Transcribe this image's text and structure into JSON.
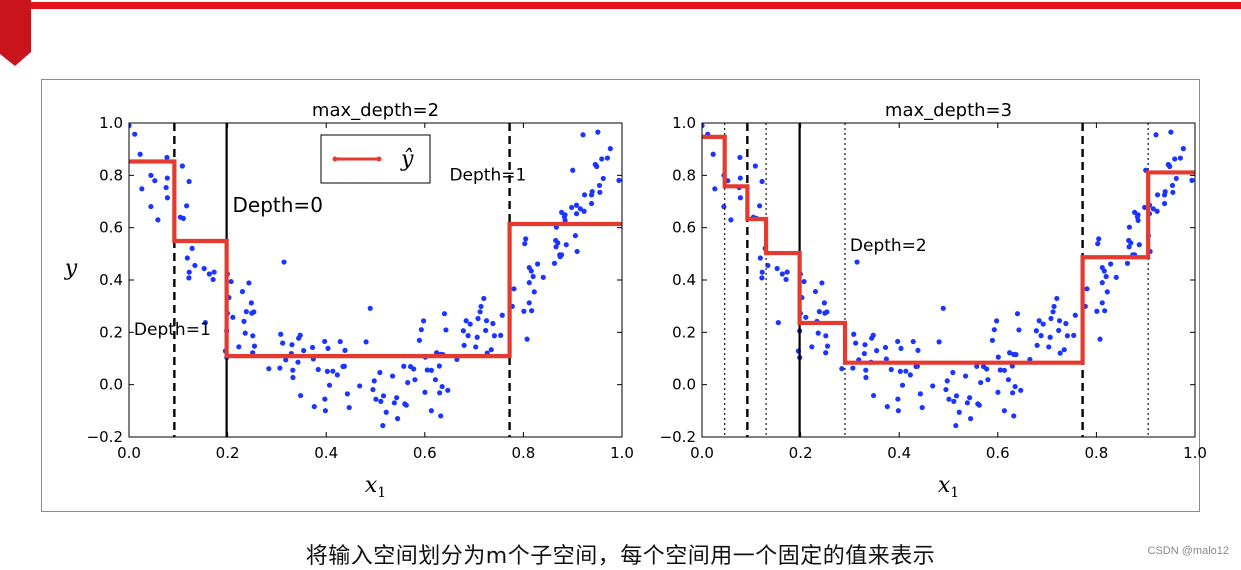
{
  "caption": "将输入空间划分为m个子空间，每个空间用一个固定的值来表示",
  "watermark": "CSDN @malo12",
  "colors": {
    "accent": "#e4121b",
    "points": "#1a35ff",
    "prediction": "#e53a2f"
  },
  "chart_data": [
    {
      "type": "scatter",
      "title": "max_depth=2",
      "xlabel": "x",
      "xlabel_subscript": "1",
      "ylabel": "y",
      "xlim": [
        0.0,
        1.0
      ],
      "ylim": [
        -0.2,
        1.0
      ],
      "xticks": [
        "0.0",
        "0.2",
        "0.4",
        "0.6",
        "0.8",
        "1.0"
      ],
      "yticks": [
        "−0.2",
        "0.0",
        "0.2",
        "0.4",
        "0.6",
        "0.8",
        "1.0"
      ],
      "legend": {
        "label": "ŷ",
        "position": "upper-center"
      },
      "prediction_steps": [
        {
          "x0": 0.0,
          "x1": 0.092,
          "y": 0.853
        },
        {
          "x0": 0.092,
          "x1": 0.198,
          "y": 0.549
        },
        {
          "x0": 0.198,
          "x1": 0.772,
          "y": 0.109
        },
        {
          "x0": 0.772,
          "x1": 1.0,
          "y": 0.614
        }
      ],
      "splits": [
        {
          "x": 0.198,
          "style": "solid"
        },
        {
          "x": 0.092,
          "style": "dashed"
        },
        {
          "x": 0.772,
          "style": "dashed"
        }
      ],
      "annotations": [
        {
          "text": "Depth=0",
          "x": 0.21,
          "y": 0.66,
          "size": "large"
        },
        {
          "text": "Depth=1",
          "x": 0.01,
          "y": 0.19,
          "size": "medium"
        },
        {
          "text": "Depth=1",
          "x": 0.65,
          "y": 0.78,
          "size": "medium"
        }
      ]
    },
    {
      "type": "scatter",
      "title": "max_depth=3",
      "xlabel": "x",
      "xlabel_subscript": "1",
      "ylabel": "",
      "xlim": [
        0.0,
        1.0
      ],
      "ylim": [
        -0.2,
        1.0
      ],
      "xticks": [
        "0.0",
        "0.2",
        "0.4",
        "0.6",
        "0.8",
        "1.0"
      ],
      "yticks": [
        "−0.2",
        "0.0",
        "0.2",
        "0.4",
        "0.6",
        "0.8",
        "1.0"
      ],
      "prediction_steps": [
        {
          "x0": 0.0,
          "x1": 0.046,
          "y": 0.947
        },
        {
          "x0": 0.046,
          "x1": 0.092,
          "y": 0.758
        },
        {
          "x0": 0.092,
          "x1": 0.13,
          "y": 0.633
        },
        {
          "x0": 0.13,
          "x1": 0.198,
          "y": 0.503
        },
        {
          "x0": 0.198,
          "x1": 0.29,
          "y": 0.236
        },
        {
          "x0": 0.29,
          "x1": 0.772,
          "y": 0.084
        },
        {
          "x0": 0.772,
          "x1": 0.905,
          "y": 0.487
        },
        {
          "x0": 0.905,
          "x1": 1.0,
          "y": 0.811
        }
      ],
      "splits": [
        {
          "x": 0.198,
          "style": "solid"
        },
        {
          "x": 0.092,
          "style": "dashed"
        },
        {
          "x": 0.772,
          "style": "dashed"
        },
        {
          "x": 0.046,
          "style": "dotted"
        },
        {
          "x": 0.13,
          "style": "dotted"
        },
        {
          "x": 0.29,
          "style": "dotted"
        },
        {
          "x": 0.905,
          "style": "dotted"
        }
      ],
      "annotations": [
        {
          "text": "Depth=2",
          "x": 0.3,
          "y": 0.51,
          "size": "medium"
        }
      ]
    }
  ]
}
